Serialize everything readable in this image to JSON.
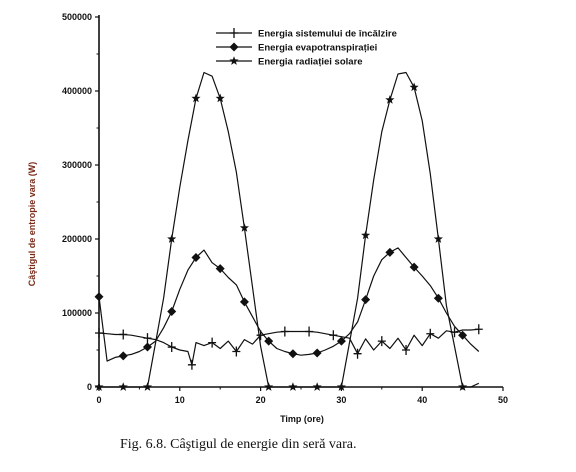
{
  "caption": "Fig. 6.8. Câştigul de energie din seră vara.",
  "chart_data": {
    "type": "line",
    "xlabel": "Timp (ore)",
    "ylabel": "Câştigul de entropie vara (W)",
    "xlim": [
      0,
      50
    ],
    "ylim": [
      0,
      500000
    ],
    "x_ticks": [
      "0",
      "10",
      "20",
      "30",
      "40",
      "50"
    ],
    "y_ticks": [
      "0",
      "100000",
      "200000",
      "300000",
      "400000",
      "500000"
    ],
    "legend_position": "top-right",
    "grid": false,
    "series": [
      {
        "name": "Energia sistemului de încălzire",
        "marker": "cross",
        "color": "#111111",
        "x": [
          0,
          1,
          2,
          3,
          4,
          5,
          6,
          7,
          8,
          9,
          10,
          11,
          11.5,
          12,
          13,
          14,
          15,
          16,
          17,
          18,
          19,
          20,
          21,
          22,
          23,
          24,
          25,
          26,
          27,
          28,
          29,
          30,
          31,
          32,
          33,
          34,
          35,
          36,
          37,
          38,
          39,
          40,
          41,
          42,
          43,
          44,
          45,
          46,
          47
        ],
        "values": [
          73000,
          72000,
          71000,
          71000,
          70000,
          68000,
          66000,
          64000,
          60000,
          54000,
          50000,
          48000,
          30000,
          60000,
          56000,
          60000,
          52000,
          62000,
          48000,
          64000,
          58000,
          70000,
          72000,
          74000,
          75000,
          75000,
          75000,
          75000,
          74000,
          72000,
          70000,
          68000,
          66000,
          45000,
          65000,
          50000,
          62000,
          52000,
          66000,
          50000,
          70000,
          56000,
          72000,
          66000,
          76000,
          74000,
          77000,
          77000,
          78000
        ]
      },
      {
        "name": "Energia evapotranspirației",
        "marker": "diamond",
        "color": "#111111",
        "x": [
          0,
          1,
          2,
          3,
          4,
          5,
          6,
          7,
          8,
          9,
          10,
          11,
          12,
          13,
          14,
          15,
          16,
          17,
          18,
          19,
          20,
          21,
          22,
          23,
          24,
          25,
          26,
          27,
          28,
          29,
          30,
          31,
          32,
          33,
          34,
          35,
          36,
          37,
          38,
          39,
          40,
          41,
          42,
          43,
          44,
          45,
          46,
          47
        ],
        "values": [
          122000,
          35000,
          40000,
          42000,
          44000,
          48000,
          54000,
          62000,
          80000,
          102000,
          132000,
          158000,
          175000,
          185000,
          168000,
          160000,
          148000,
          138000,
          115000,
          95000,
          75000,
          62000,
          52000,
          48000,
          45000,
          43000,
          44000,
          46000,
          50000,
          55000,
          62000,
          72000,
          88000,
          118000,
          150000,
          172000,
          182000,
          188000,
          175000,
          162000,
          150000,
          137000,
          120000,
          100000,
          82000,
          70000,
          58000,
          48000
        ]
      },
      {
        "name": "Energia radiației solare",
        "marker": "star",
        "color": "#111111",
        "x": [
          0,
          1,
          2,
          3,
          4,
          5,
          6,
          7,
          8,
          9,
          10,
          11,
          12,
          13,
          14,
          15,
          16,
          17,
          18,
          19,
          20,
          21,
          22,
          23,
          24,
          25,
          26,
          27,
          28,
          29,
          30,
          31,
          32,
          33,
          34,
          35,
          36,
          37,
          38,
          39,
          40,
          41,
          42,
          43,
          44,
          45,
          46,
          47
        ],
        "values": [
          0,
          0,
          0,
          0,
          0,
          0,
          0,
          60000,
          120000,
          200000,
          270000,
          333000,
          390000,
          425000,
          420000,
          390000,
          345000,
          290000,
          215000,
          135000,
          55000,
          0,
          0,
          0,
          0,
          0,
          0,
          0,
          0,
          0,
          0,
          60000,
          120000,
          205000,
          280000,
          345000,
          388000,
          423000,
          425000,
          405000,
          360000,
          288000,
          200000,
          110000,
          55000,
          0,
          0,
          5000
        ]
      }
    ]
  }
}
